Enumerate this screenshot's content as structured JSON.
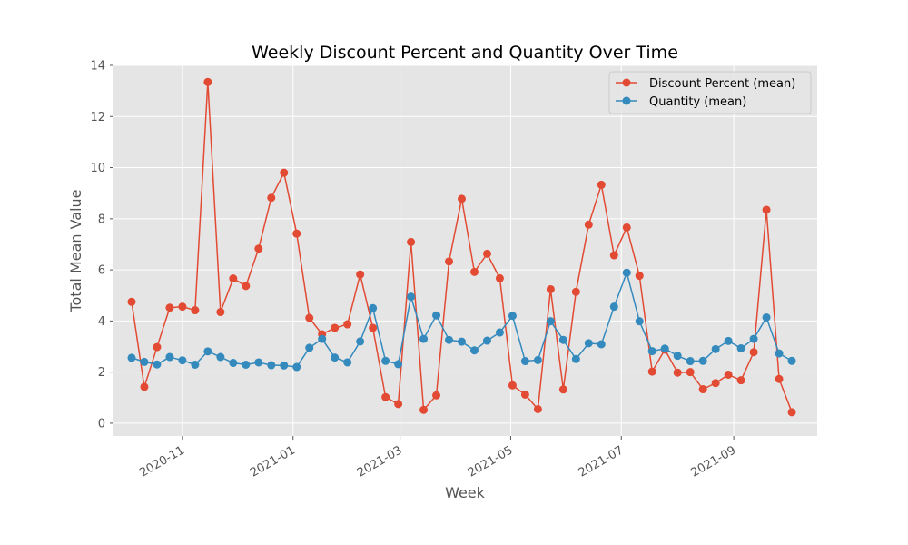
{
  "chart_data": {
    "type": "line",
    "title": "Weekly Discount Percent and Quantity Over Time",
    "xlabel": "Week",
    "ylabel": "Total Mean Value",
    "ylim": [
      -0.5,
      14
    ],
    "y_ticks": [
      0,
      2,
      4,
      6,
      8,
      10,
      12,
      14
    ],
    "x_ticks": [
      {
        "date": "2020-11-01",
        "label": "2020-11"
      },
      {
        "date": "2021-01-01",
        "label": "2021-01"
      },
      {
        "date": "2021-03-01",
        "label": "2021-03"
      },
      {
        "date": "2021-05-01",
        "label": "2021-05"
      },
      {
        "date": "2021-07-01",
        "label": "2021-07"
      },
      {
        "date": "2021-09-01",
        "label": "2021-09"
      }
    ],
    "xlim": [
      "2020-09-24",
      "2021-10-17"
    ],
    "grid": true,
    "legend_position": "upper right",
    "x": [
      "2020-10-04",
      "2020-10-11",
      "2020-10-18",
      "2020-10-25",
      "2020-11-01",
      "2020-11-08",
      "2020-11-15",
      "2020-11-22",
      "2020-11-29",
      "2020-12-06",
      "2020-12-13",
      "2020-12-20",
      "2020-12-27",
      "2021-01-03",
      "2021-01-10",
      "2021-01-17",
      "2021-01-24",
      "2021-01-31",
      "2021-02-07",
      "2021-02-14",
      "2021-02-21",
      "2021-02-28",
      "2021-03-07",
      "2021-03-14",
      "2021-03-21",
      "2021-03-28",
      "2021-04-04",
      "2021-04-11",
      "2021-04-18",
      "2021-04-25",
      "2021-05-02",
      "2021-05-09",
      "2021-05-16",
      "2021-05-23",
      "2021-05-30",
      "2021-06-06",
      "2021-06-13",
      "2021-06-20",
      "2021-06-27",
      "2021-07-04",
      "2021-07-11",
      "2021-07-18",
      "2021-07-25",
      "2021-08-01",
      "2021-08-08",
      "2021-08-15",
      "2021-08-22",
      "2021-08-29",
      "2021-09-05",
      "2021-09-12",
      "2021-09-19",
      "2021-09-26",
      "2021-10-03"
    ],
    "series": [
      {
        "name": "Discount Percent (mean)",
        "color": "#E24A33",
        "values": [
          4.75,
          1.42,
          2.98,
          4.52,
          4.56,
          4.42,
          13.35,
          4.35,
          5.66,
          5.37,
          6.83,
          8.82,
          9.8,
          7.42,
          4.12,
          3.48,
          3.73,
          3.87,
          5.82,
          3.73,
          1.02,
          0.75,
          7.09,
          0.52,
          1.09,
          6.33,
          8.78,
          5.92,
          6.63,
          5.67,
          1.48,
          1.12,
          0.55,
          5.24,
          1.32,
          5.14,
          7.77,
          9.33,
          6.57,
          7.66,
          5.77,
          2.02,
          2.88,
          1.98,
          2.0,
          1.33,
          1.57,
          1.9,
          1.68,
          2.78,
          8.35,
          1.73,
          0.43
        ]
      },
      {
        "name": "Quantity (mean)",
        "color": "#348ABD",
        "values": [
          2.56,
          2.4,
          2.3,
          2.59,
          2.46,
          2.29,
          2.81,
          2.59,
          2.36,
          2.29,
          2.38,
          2.27,
          2.26,
          2.2,
          2.95,
          3.3,
          2.57,
          2.38,
          3.2,
          4.5,
          2.44,
          2.31,
          4.95,
          3.3,
          4.22,
          3.26,
          3.19,
          2.85,
          3.23,
          3.55,
          4.2,
          2.43,
          2.47,
          3.99,
          3.26,
          2.51,
          3.13,
          3.09,
          4.56,
          5.89,
          3.99,
          2.82,
          2.92,
          2.64,
          2.43,
          2.44,
          2.9,
          3.22,
          2.93,
          3.3,
          4.14,
          2.73,
          2.44
        ]
      }
    ]
  }
}
